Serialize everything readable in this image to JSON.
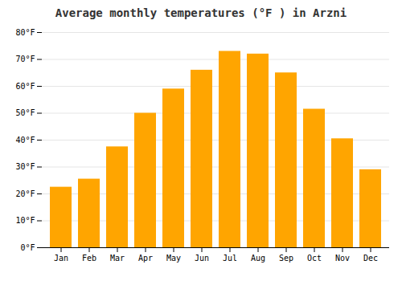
{
  "chart_data": {
    "type": "bar",
    "title": "Average monthly temperatures (°F ) in Arzni",
    "categories": [
      "Jan",
      "Feb",
      "Mar",
      "Apr",
      "May",
      "Jun",
      "Jul",
      "Aug",
      "Sep",
      "Oct",
      "Nov",
      "Dec"
    ],
    "values": [
      22.5,
      25.5,
      37.5,
      50.0,
      59.0,
      66.0,
      73.0,
      72.0,
      65.0,
      51.5,
      40.5,
      29.0
    ],
    "color": "#FFA500",
    "ylim": [
      0,
      80
    ],
    "yticks": [
      {
        "value": 0,
        "label": "0°F"
      },
      {
        "value": 10,
        "label": "10°F"
      },
      {
        "value": 20,
        "label": "20°F"
      },
      {
        "value": 30,
        "label": "30°F"
      },
      {
        "value": 40,
        "label": "40°F"
      },
      {
        "value": 50,
        "label": "50°F"
      },
      {
        "value": 60,
        "label": "60°F"
      },
      {
        "value": 70,
        "label": "70°F"
      },
      {
        "value": 80,
        "label": "80°F"
      }
    ],
    "grid": true
  }
}
